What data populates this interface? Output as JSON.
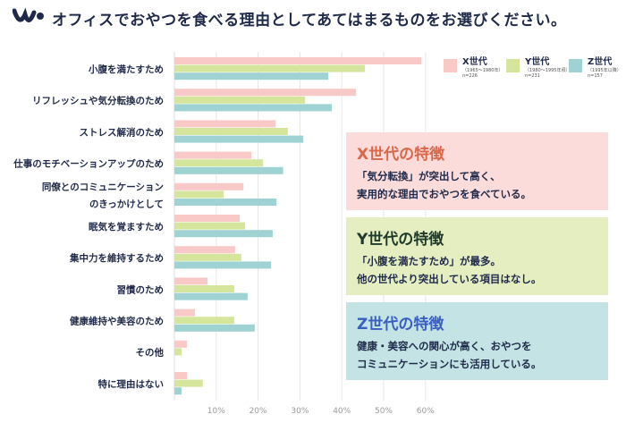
{
  "title": "オフィスでおやつを食べる理由としてあてはまるものをお選びください。",
  "colors": {
    "X": "#f8c9c7",
    "Y": "#d5e59c",
    "Z": "#9fd3d3",
    "text": "#1f2a4a"
  },
  "legend": [
    {
      "name": "X世代",
      "sub": "（1965〜1980年）",
      "n": "n=226"
    },
    {
      "name": "Y世代",
      "sub": "（1980〜1995年頃）",
      "n": "n=231"
    },
    {
      "name": "Z世代",
      "sub": "（1995年以降）",
      "n": "n=157"
    }
  ],
  "boxes": [
    {
      "title": "X世代の特徴",
      "line1": "「気分転換」が突出して高く、",
      "line2": "実用的な理由でおやつを食べている。",
      "bg": "#fbdcda",
      "color": "#d9674a"
    },
    {
      "title": "Y世代の特徴",
      "line1": "「小腹を満たすため」が最多。",
      "line2": "他の世代より突出している項目はなし。",
      "bg": "#e4eec0",
      "color": "#1f3a2a"
    },
    {
      "title": "Z世代の特徴",
      "line1": "健康・美容への関心が高く、おやつを",
      "line2": "コミュニケーションにも活用している。",
      "bg": "#c3e3e4",
      "color": "#3a5fc0"
    }
  ],
  "chart_data": {
    "type": "bar",
    "orientation": "horizontal",
    "categories": [
      "小腹を満たすため",
      "リフレッシュや気分転換のため",
      "ストレス解消のため",
      "仕事のモチベーションアップのため",
      "同僚とのコミュニケーションのきっかけとして",
      "眠気を覚ますため",
      "集中力を維持するため",
      "習慣のため",
      "健康維持や美容のため",
      "その他",
      "特に理由はない"
    ],
    "series": [
      {
        "name": "X世代",
        "values": [
          59.0,
          43.4,
          24.2,
          18.4,
          16.5,
          15.6,
          14.5,
          7.9,
          4.9,
          3.0,
          3.0
        ]
      },
      {
        "name": "Y世代",
        "values": [
          45.5,
          31.2,
          27.1,
          21.2,
          11.8,
          16.9,
          16.0,
          14.3,
          14.3,
          1.7,
          6.8
        ]
      },
      {
        "name": "Z世代",
        "values": [
          36.8,
          37.6,
          30.8,
          26.0,
          24.4,
          23.5,
          23.1,
          17.5,
          19.2,
          0,
          1.7
        ]
      }
    ],
    "xlim": [
      0,
      60
    ],
    "xticks": [
      "10%",
      "20%",
      "30%",
      "40%",
      "50%",
      "60%"
    ],
    "grid": true,
    "legend_position": "top-right"
  }
}
